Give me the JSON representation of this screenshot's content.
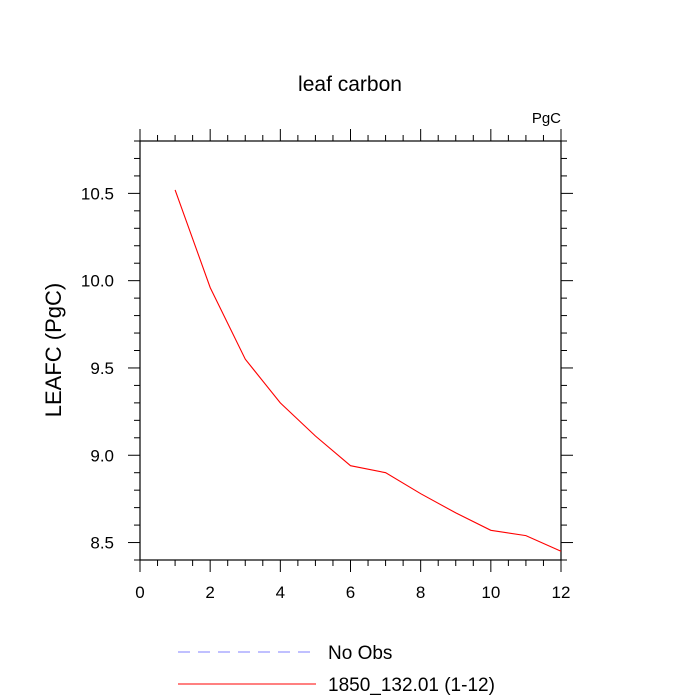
{
  "chart_data": {
    "type": "line",
    "title": "leaf carbon",
    "units": "PgC",
    "xlabel": "",
    "ylabel": "LEAFC  (PgC)",
    "xlim": [
      0,
      12
    ],
    "ylim": [
      8.4,
      10.8
    ],
    "xticks": [
      0,
      2,
      4,
      6,
      8,
      10,
      12
    ],
    "yticks": [
      8.5,
      9.0,
      9.5,
      10.0,
      10.5
    ],
    "xtick_labels": [
      "0",
      "2",
      "4",
      "6",
      "8",
      "10",
      "12"
    ],
    "ytick_labels": [
      "8.5",
      "9.0",
      "9.5",
      "10.0",
      "10.5"
    ],
    "grid": false,
    "legend_position": "bottom",
    "series": [
      {
        "name": "1850_132.01 (1-12)",
        "color": "#ff0000",
        "style": "solid",
        "x": [
          1,
          2,
          3,
          4,
          5,
          6,
          7,
          8,
          9,
          10,
          11,
          12
        ],
        "y": [
          10.52,
          9.96,
          9.55,
          9.3,
          9.11,
          8.94,
          8.9,
          8.78,
          8.67,
          8.57,
          8.54,
          8.45
        ]
      }
    ],
    "legend": [
      {
        "label": "No Obs",
        "color": "#8080ff",
        "style": "dashed"
      },
      {
        "label": "1850_132.01 (1-12)",
        "color": "#ff0000",
        "style": "solid"
      }
    ]
  }
}
